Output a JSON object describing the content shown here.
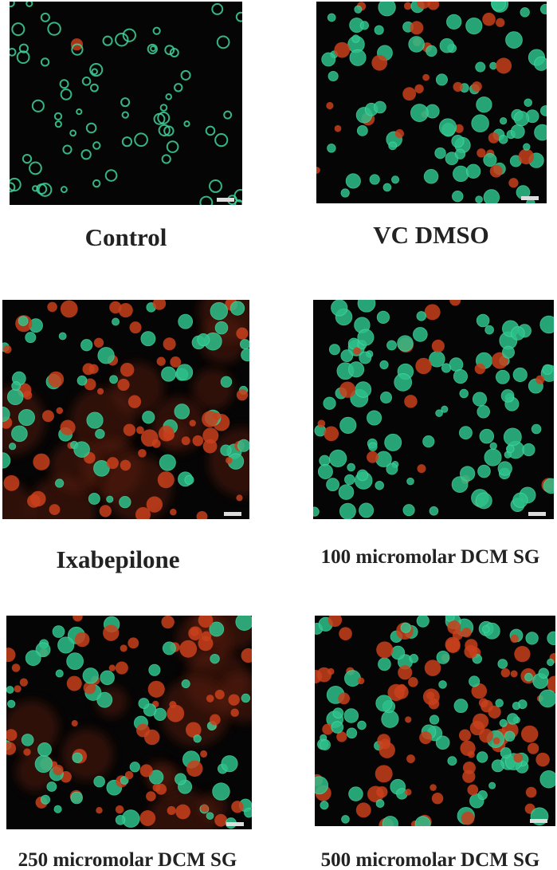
{
  "panels": [
    {
      "label": "Control"
    },
    {
      "label": "VC DMSO"
    },
    {
      "label": "Ixabepilone"
    },
    {
      "label": "100 micromolar DCM SG"
    },
    {
      "label": "250 micromolar DCM SG"
    },
    {
      "label": "500 micromolar DCM SG"
    }
  ]
}
